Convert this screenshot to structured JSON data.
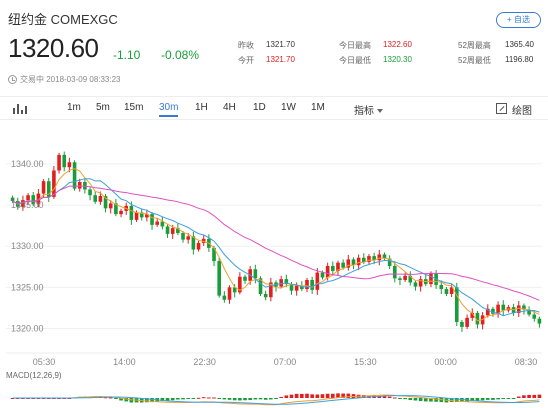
{
  "header": {
    "title": "纽约金  COMEXGC",
    "add_button": "+ 自选",
    "price": "1320.60",
    "change": "-1.10",
    "change_pct": "-0.08%",
    "status": "交易中 2018-03-09 08:33:23"
  },
  "stats": {
    "prev_close_label": "昨收",
    "prev_close": "1321.70",
    "open_label": "今开",
    "open": "1321.70",
    "high_label": "今日最高",
    "high": "1322.60",
    "low_label": "今日最低",
    "low": "1320.30",
    "w52_high_label": "52周最高",
    "w52_high": "1365.40",
    "w52_low_label": "52周最低",
    "w52_low": "1196.80"
  },
  "toolbar": {
    "intervals": [
      "1m",
      "5m",
      "15m",
      "30m",
      "1H",
      "4H",
      "1D",
      "1W",
      "1M"
    ],
    "active": "30m",
    "indicators_label": "指标",
    "draw_label": "绘图"
  },
  "chart_data": {
    "type": "candlestick",
    "ylim": [
      1318,
      1344
    ],
    "y_ticks": [
      "1340.00",
      "1335.00",
      "1330.00",
      "1325.00",
      "1320.00"
    ],
    "y_tick_values": [
      1340,
      1335,
      1330,
      1325,
      1320
    ],
    "x_ticks": [
      "05:30",
      "14:00",
      "22:30",
      "07:00",
      "15:30",
      "00:00",
      "08:30"
    ],
    "close_series": [
      1335.5,
      1334.8,
      1335.6,
      1336.2,
      1335.1,
      1336.4,
      1337.9,
      1336.0,
      1339.2,
      1341.1,
      1339.6,
      1340.2,
      1337.0,
      1337.8,
      1336.9,
      1336.2,
      1335.4,
      1336.1,
      1334.6,
      1335.2,
      1333.9,
      1334.3,
      1334.9,
      1333.2,
      1334.1,
      1333.5,
      1333.9,
      1332.6,
      1333.0,
      1332.4,
      1331.5,
      1332.2,
      1331.6,
      1330.8,
      1331.2,
      1329.6,
      1330.4,
      1330.9,
      1329.8,
      1328.2,
      1324.0,
      1323.5,
      1325.0,
      1324.4,
      1326.3,
      1325.8,
      1327.2,
      1326.1,
      1324.2,
      1323.8,
      1325.6,
      1325.1,
      1326.0,
      1325.4,
      1324.6,
      1325.2,
      1324.8,
      1325.9,
      1324.7,
      1326.8,
      1326.2,
      1327.6,
      1327.0,
      1328.0,
      1327.4,
      1328.4,
      1327.7,
      1328.6,
      1328.1,
      1328.8,
      1328.3,
      1329.0,
      1328.5,
      1327.6,
      1326.1,
      1325.9,
      1326.4,
      1325.6,
      1325.1,
      1326.0,
      1325.4,
      1326.7,
      1325.3,
      1324.8,
      1324.2,
      1325.0,
      1320.8,
      1320.2,
      1321.3,
      1321.9,
      1320.5,
      1321.6,
      1322.4,
      1321.8,
      1322.9,
      1322.2,
      1322.6,
      1321.9,
      1322.8,
      1322.3,
      1321.7,
      1321.2,
      1320.6
    ],
    "macd_label": "MACD(12,26,9)"
  }
}
